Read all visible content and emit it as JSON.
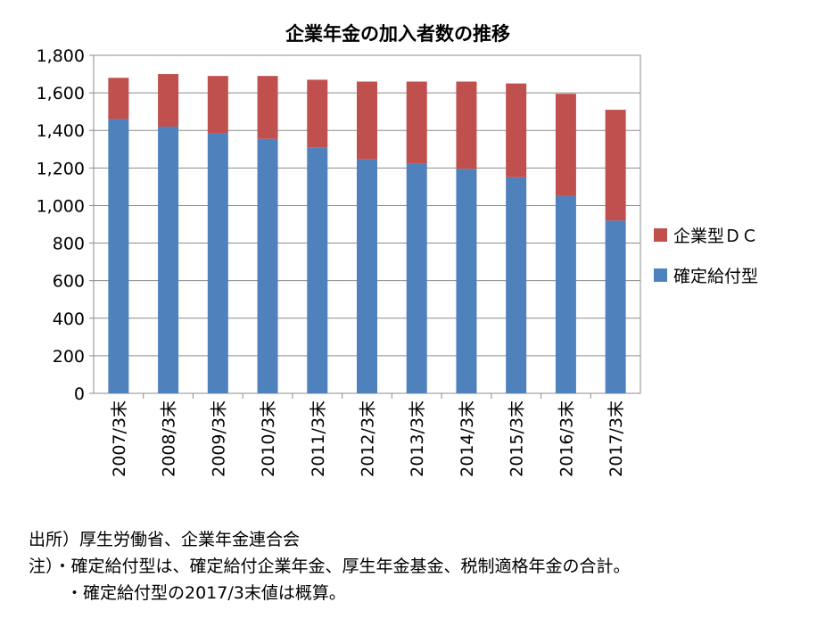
{
  "chart_data": {
    "type": "bar",
    "stacked": true,
    "title": "企業年金の加入者数の推移",
    "categories": [
      "2007/3末",
      "2008/3末",
      "2009/3末",
      "2010/3末",
      "2011/3末",
      "2012/3末",
      "2013/3末",
      "2014/3末",
      "2015/3末",
      "2016/3末",
      "2017/3末"
    ],
    "series": [
      {
        "name": "確定給付型",
        "color": "#4f81bd",
        "values": [
          1460,
          1420,
          1385,
          1355,
          1310,
          1245,
          1225,
          1195,
          1150,
          1050,
          920
        ]
      },
      {
        "name": "企業型ＤＣ",
        "color": "#c0504d",
        "values": [
          220,
          280,
          305,
          335,
          360,
          415,
          435,
          465,
          500,
          545,
          590
        ]
      }
    ],
    "ylim": [
      0,
      1800
    ],
    "yticks": [
      0,
      200,
      400,
      600,
      800,
      1000,
      1200,
      1400,
      1600,
      1800
    ],
    "ytick_labels": [
      "0",
      "200",
      "400",
      "600",
      "800",
      "1,000",
      "1,200",
      "1,400",
      "1,600",
      "1,800"
    ],
    "grid": true,
    "legend": "right"
  },
  "notes": {
    "source": "出所）厚生労働省、企業年金連合会",
    "note1": "注）・確定給付型は、確定給付企業年金、厚生年金基金、税制適格年金の合計。",
    "note2": "・確定給付型の2017/3末値は概算。"
  }
}
